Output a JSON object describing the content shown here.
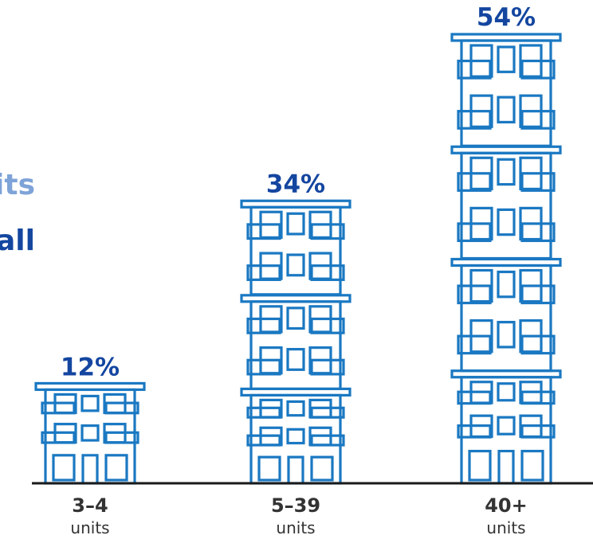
{
  "headline": {
    "line_1": "nits",
    "line_2": "all"
  },
  "colors": {
    "building_stroke": "#1a78c2",
    "percent_text": "#1446a0",
    "headline_light": "#7ea3d8",
    "headline_dark": "#1446a0",
    "baseline": "#1a1a1a",
    "category_text": "#333333"
  },
  "icon": "apartment-building-icon",
  "chart_data": {
    "type": "bar",
    "categories": [
      "3–4",
      "5–39",
      "40+"
    ],
    "category_sublabels": [
      "units",
      "units",
      "units"
    ],
    "values": [
      12,
      34,
      54
    ],
    "value_labels": [
      "12%",
      "34%",
      "54%"
    ],
    "unit": "%",
    "title": "",
    "xlabel": "",
    "ylabel": "",
    "ylim": [
      0,
      54
    ],
    "grid": false,
    "legend": "none",
    "bar_style": "stacked building icons"
  }
}
